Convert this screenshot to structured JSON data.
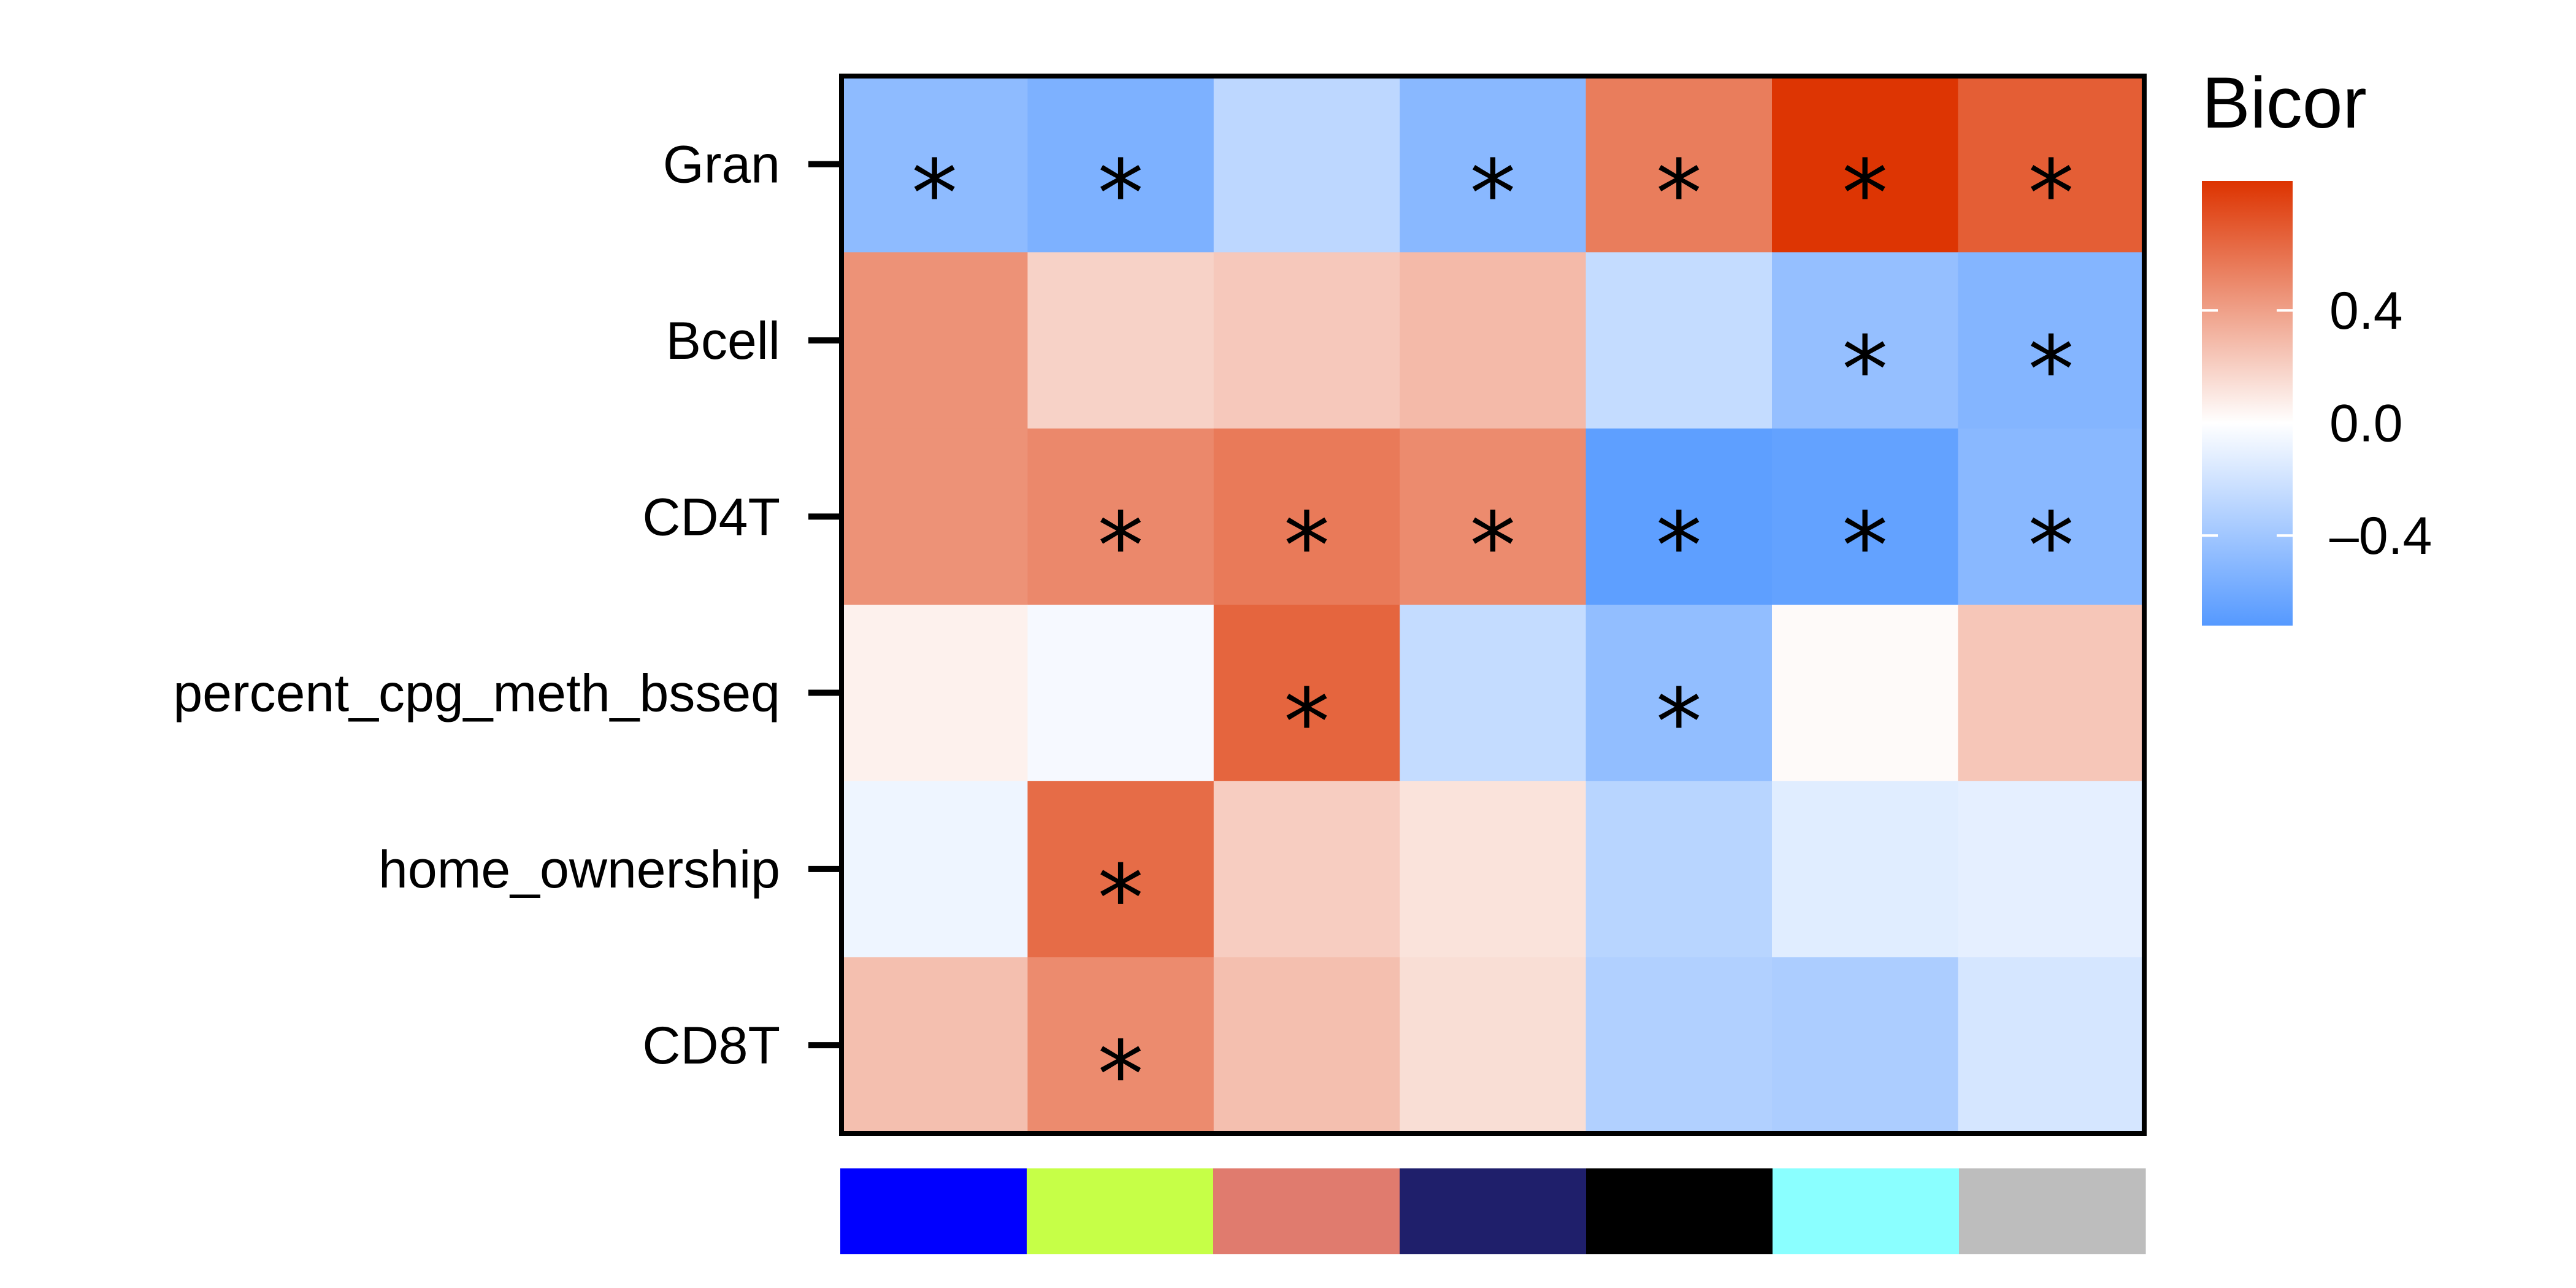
{
  "chart_data": {
    "type": "heatmap",
    "rows": [
      "Gran",
      "Bcell",
      "CD4T",
      "percent_cpg_meth_bsseq",
      "home_ownership",
      "CD8T"
    ],
    "column_colors": [
      "#0000FF",
      "#C6FF47",
      "#E07B6E",
      "#1F1F6B",
      "#000000",
      "#8AFFFF",
      "#BDBDBD"
    ],
    "values": [
      [
        -0.48,
        -0.55,
        -0.28,
        -0.5,
        0.55,
        0.85,
        0.68
      ],
      [
        0.46,
        0.19,
        0.23,
        0.29,
        -0.25,
        -0.45,
        -0.52
      ],
      [
        0.46,
        0.5,
        0.56,
        0.49,
        -0.68,
        -0.66,
        -0.5
      ],
      [
        0.06,
        -0.04,
        0.65,
        -0.25,
        -0.46,
        0.02,
        0.24
      ],
      [
        -0.07,
        0.62,
        0.21,
        0.12,
        -0.3,
        -0.13,
        -0.11
      ],
      [
        0.27,
        0.49,
        0.27,
        0.14,
        -0.33,
        -0.35,
        -0.18
      ]
    ],
    "significance": [
      [
        true,
        true,
        false,
        true,
        true,
        true,
        true
      ],
      [
        false,
        false,
        false,
        false,
        false,
        true,
        true
      ],
      [
        false,
        true,
        true,
        true,
        true,
        true,
        true
      ],
      [
        false,
        false,
        true,
        false,
        true,
        false,
        false
      ],
      [
        false,
        true,
        false,
        false,
        false,
        false,
        false
      ],
      [
        false,
        true,
        false,
        false,
        false,
        false,
        false
      ]
    ],
    "significance_marker": "*",
    "legend": {
      "title": "Bicor",
      "min": -0.72,
      "max": 0.86,
      "ticks": [
        0.4,
        0.0,
        -0.4
      ],
      "tick_labels": [
        "0.4",
        "0.0",
        "–0.4"
      ],
      "color_low": "#5599FF",
      "color_mid": "#FFFFFF",
      "color_high": "#DD3300"
    }
  }
}
